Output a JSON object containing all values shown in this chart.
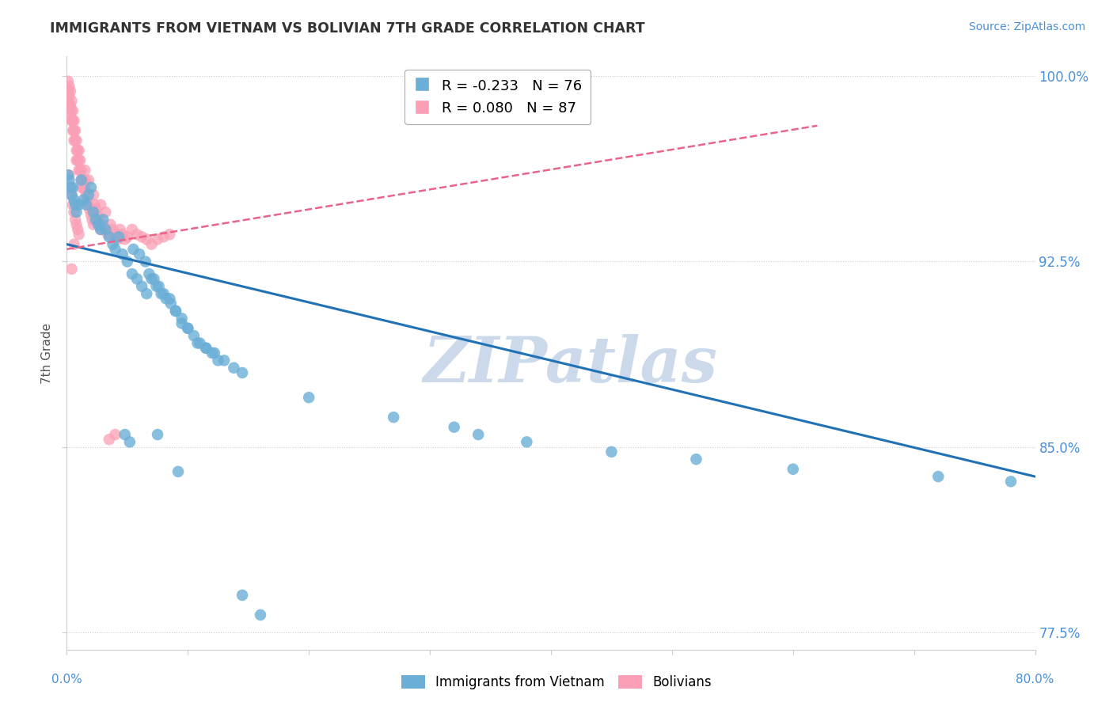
{
  "title": "IMMIGRANTS FROM VIETNAM VS BOLIVIAN 7TH GRADE CORRELATION CHART",
  "source_text": "Source: ZipAtlas.com",
  "ylabel": "7th Grade",
  "R_blue": -0.233,
  "N_blue": 76,
  "R_pink": 0.08,
  "N_pink": 87,
  "blue_color": "#6baed6",
  "pink_color": "#fa9fb5",
  "blue_line_color": "#2171b5",
  "pink_line_color": "#e8648a",
  "watermark_text": "ZIPatlas",
  "watermark_color": "#ccd9ea",
  "legend_blue_label": "Immigrants from Vietnam",
  "legend_pink_label": "Bolivians",
  "xmin": 0.0,
  "xmax": 0.8,
  "ymin": 0.768,
  "ymax": 1.008,
  "ytick_vals": [
    0.775,
    0.85,
    0.925,
    1.0
  ],
  "ytick_labels": [
    "77.5%",
    "85.0%",
    "92.5%",
    "100.0%"
  ],
  "blue_trend_x": [
    0.0,
    0.8
  ],
  "blue_trend_y": [
    0.932,
    0.838
  ],
  "pink_trend_x": [
    0.0,
    0.62
  ],
  "pink_trend_y": [
    0.93,
    0.98
  ],
  "blue_scatter_x": [
    0.001,
    0.002,
    0.003,
    0.004,
    0.005,
    0.006,
    0.007,
    0.008,
    0.01,
    0.012,
    0.014,
    0.016,
    0.018,
    0.02,
    0.022,
    0.024,
    0.026,
    0.028,
    0.03,
    0.032,
    0.035,
    0.038,
    0.04,
    0.043,
    0.046,
    0.05,
    0.054,
    0.058,
    0.062,
    0.066,
    0.07,
    0.074,
    0.078,
    0.082,
    0.086,
    0.09,
    0.095,
    0.1,
    0.108,
    0.115,
    0.122,
    0.13,
    0.138,
    0.145,
    0.055,
    0.06,
    0.065,
    0.068,
    0.072,
    0.076,
    0.08,
    0.085,
    0.09,
    0.095,
    0.1,
    0.105,
    0.11,
    0.115,
    0.12,
    0.125,
    0.2,
    0.27,
    0.34,
    0.32,
    0.38,
    0.45,
    0.52,
    0.6,
    0.72,
    0.78,
    0.048,
    0.052,
    0.075,
    0.092,
    0.145,
    0.16
  ],
  "blue_scatter_y": [
    0.96,
    0.958,
    0.955,
    0.952,
    0.955,
    0.95,
    0.948,
    0.945,
    0.948,
    0.958,
    0.95,
    0.948,
    0.952,
    0.955,
    0.945,
    0.942,
    0.94,
    0.938,
    0.942,
    0.938,
    0.935,
    0.932,
    0.93,
    0.935,
    0.928,
    0.925,
    0.92,
    0.918,
    0.915,
    0.912,
    0.918,
    0.915,
    0.912,
    0.91,
    0.908,
    0.905,
    0.9,
    0.898,
    0.892,
    0.89,
    0.888,
    0.885,
    0.882,
    0.88,
    0.93,
    0.928,
    0.925,
    0.92,
    0.918,
    0.915,
    0.912,
    0.91,
    0.905,
    0.902,
    0.898,
    0.895,
    0.892,
    0.89,
    0.888,
    0.885,
    0.87,
    0.862,
    0.855,
    0.858,
    0.852,
    0.848,
    0.845,
    0.841,
    0.838,
    0.836,
    0.855,
    0.852,
    0.855,
    0.84,
    0.79,
    0.782
  ],
  "pink_scatter_x": [
    0.001,
    0.001,
    0.001,
    0.002,
    0.002,
    0.002,
    0.003,
    0.003,
    0.003,
    0.004,
    0.004,
    0.004,
    0.005,
    0.005,
    0.005,
    0.006,
    0.006,
    0.006,
    0.007,
    0.007,
    0.008,
    0.008,
    0.008,
    0.009,
    0.009,
    0.01,
    0.01,
    0.01,
    0.011,
    0.011,
    0.012,
    0.012,
    0.013,
    0.014,
    0.015,
    0.015,
    0.016,
    0.017,
    0.018,
    0.019,
    0.02,
    0.021,
    0.022,
    0.023,
    0.024,
    0.025,
    0.026,
    0.027,
    0.028,
    0.03,
    0.032,
    0.034,
    0.036,
    0.038,
    0.04,
    0.042,
    0.044,
    0.046,
    0.048,
    0.05,
    0.054,
    0.058,
    0.062,
    0.066,
    0.07,
    0.075,
    0.08,
    0.085,
    0.002,
    0.003,
    0.004,
    0.005,
    0.006,
    0.007,
    0.008,
    0.009,
    0.01,
    0.012,
    0.015,
    0.018,
    0.022,
    0.028,
    0.032,
    0.035,
    0.04,
    0.004,
    0.006
  ],
  "pink_scatter_y": [
    0.998,
    0.994,
    0.99,
    0.996,
    0.992,
    0.988,
    0.994,
    0.988,
    0.984,
    0.99,
    0.986,
    0.982,
    0.986,
    0.982,
    0.978,
    0.982,
    0.978,
    0.974,
    0.978,
    0.974,
    0.974,
    0.97,
    0.966,
    0.97,
    0.966,
    0.97,
    0.966,
    0.962,
    0.966,
    0.962,
    0.962,
    0.958,
    0.958,
    0.955,
    0.958,
    0.954,
    0.952,
    0.95,
    0.948,
    0.946,
    0.944,
    0.942,
    0.94,
    0.948,
    0.946,
    0.944,
    0.942,
    0.94,
    0.938,
    0.94,
    0.938,
    0.936,
    0.94,
    0.938,
    0.936,
    0.934,
    0.938,
    0.936,
    0.934,
    0.935,
    0.938,
    0.936,
    0.935,
    0.934,
    0.932,
    0.934,
    0.935,
    0.936,
    0.96,
    0.955,
    0.952,
    0.948,
    0.945,
    0.942,
    0.94,
    0.938,
    0.936,
    0.955,
    0.962,
    0.958,
    0.952,
    0.948,
    0.945,
    0.853,
    0.855,
    0.922,
    0.932
  ]
}
